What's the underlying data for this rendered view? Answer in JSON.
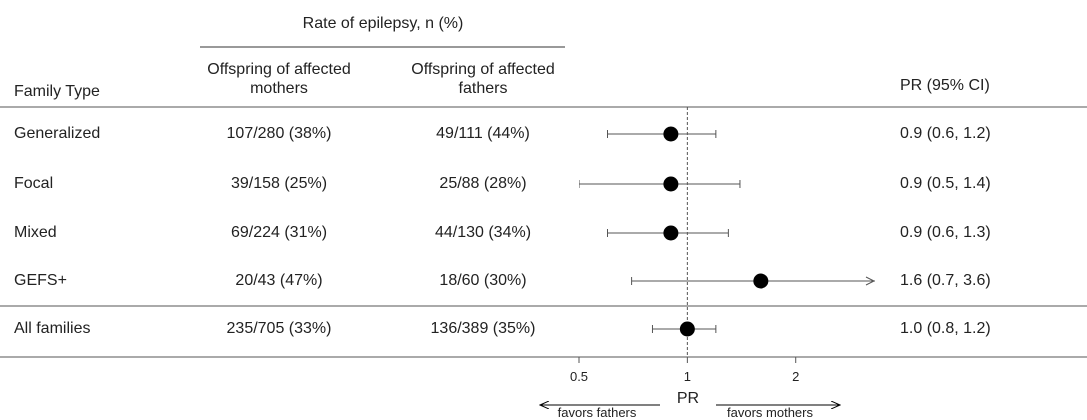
{
  "chart_data": {
    "type": "forest",
    "group_header": "Rate of epilepsy, n (%)",
    "columns": [
      "Family Type",
      "Offspring of affected mothers",
      "Offspring of affected fathers",
      "PR (95% CI)"
    ],
    "rows": [
      {
        "family": "Generalized",
        "mothers": "107/280 (38%)",
        "fathers": "49/111 (44%)",
        "pr": 0.9,
        "ci": [
          0.6,
          1.2
        ],
        "pr_label": "0.9 (0.6, 1.2)"
      },
      {
        "family": "Focal",
        "mothers": "39/158 (25%)",
        "fathers": "25/88 (28%)",
        "pr": 0.9,
        "ci": [
          0.5,
          1.4
        ],
        "pr_label": "0.9 (0.5, 1.4)"
      },
      {
        "family": "Mixed",
        "mothers": "69/224 (31%)",
        "fathers": "44/130 (34%)",
        "pr": 0.9,
        "ci": [
          0.6,
          1.3
        ],
        "pr_label": "0.9 (0.6, 1.3)"
      },
      {
        "family": "GEFS+",
        "mothers": "20/43 (47%)",
        "fathers": "18/60 (30%)",
        "pr": 1.6,
        "ci": [
          0.7,
          3.6
        ],
        "pr_label": "1.6 (0.7, 3.6)"
      },
      {
        "family": "All families",
        "mothers": "235/705 (33%)",
        "fathers": "136/389 (35%)",
        "pr": 1.0,
        "ci": [
          0.8,
          1.2
        ],
        "pr_label": "1.0 (0.8, 1.2)"
      }
    ],
    "x_label": "PR",
    "log_x": true,
    "xlim": [
      0.5,
      3.3
    ],
    "xticks": [
      0.5,
      1,
      2
    ],
    "reference": 1,
    "left_annotation": "favors fathers",
    "right_annotation": "favors mothers",
    "color": "#000000",
    "whisker_color": "#555555"
  }
}
